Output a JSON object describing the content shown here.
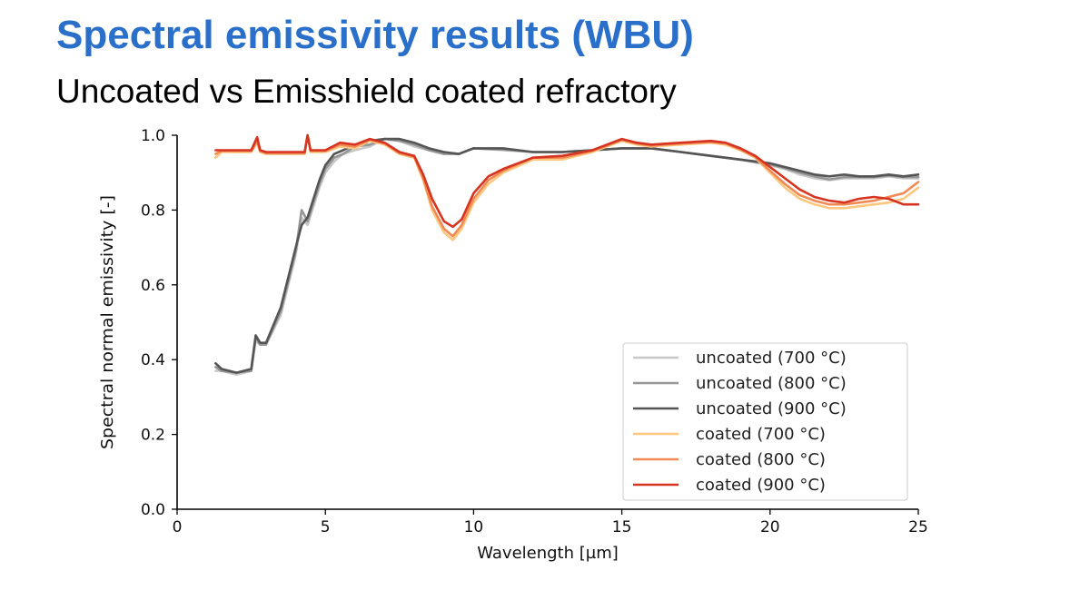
{
  "slide": {
    "title": "Spectral emissivity results (WBU)",
    "subtitle": "Uncoated vs Emisshield coated refractory"
  },
  "chart_data": {
    "type": "line",
    "xlabel": "Wavelength [µm]",
    "ylabel": "Spectral normal emissivity [-]",
    "xlim": [
      0,
      25
    ],
    "ylim": [
      0,
      1.0
    ],
    "xticks": [
      0,
      5,
      10,
      15,
      20,
      25
    ],
    "yticks": [
      0.0,
      0.2,
      0.4,
      0.6,
      0.8,
      1.0
    ],
    "xtick_labels": [
      "0",
      "5",
      "10",
      "15",
      "20",
      "25"
    ],
    "ytick_labels": [
      "0.0",
      "0.2",
      "0.4",
      "0.6",
      "0.8",
      "1.0"
    ],
    "grid": false,
    "legend_position": "lower-right",
    "series": [
      {
        "name": "uncoated (700 °C)",
        "color": "#c8c8c8",
        "x": [
          1.3,
          1.5,
          2.0,
          2.5,
          2.65,
          2.8,
          3.0,
          3.5,
          4.0,
          4.2,
          4.4,
          4.8,
          5.0,
          5.3,
          5.6,
          6.0,
          6.5,
          7.0,
          7.5,
          8.0,
          8.5,
          9.0,
          9.5,
          10.0,
          11.0,
          12.0,
          13.0,
          14.0,
          15.0,
          16.0,
          17.0,
          18.0,
          19.0,
          20.0,
          20.5,
          21.0,
          21.5,
          22.0,
          22.5,
          23.0,
          23.5,
          24.0,
          24.5,
          25.0
        ],
        "y": [
          0.37,
          0.37,
          0.36,
          0.37,
          0.45,
          0.44,
          0.44,
          0.52,
          0.68,
          0.78,
          0.76,
          0.86,
          0.9,
          0.93,
          0.95,
          0.96,
          0.97,
          0.99,
          0.985,
          0.97,
          0.96,
          0.95,
          0.95,
          0.965,
          0.96,
          0.955,
          0.955,
          0.96,
          0.965,
          0.965,
          0.955,
          0.945,
          0.935,
          0.92,
          0.91,
          0.895,
          0.885,
          0.88,
          0.885,
          0.885,
          0.885,
          0.89,
          0.885,
          0.885
        ]
      },
      {
        "name": "uncoated (800 °C)",
        "color": "#969696",
        "x": [
          1.3,
          1.5,
          2.0,
          2.5,
          2.65,
          2.8,
          3.0,
          3.5,
          4.0,
          4.2,
          4.4,
          4.8,
          5.0,
          5.3,
          5.6,
          6.0,
          6.5,
          7.0,
          7.5,
          8.0,
          8.5,
          9.0,
          9.5,
          10.0,
          11.0,
          12.0,
          13.0,
          14.0,
          15.0,
          16.0,
          17.0,
          18.0,
          19.0,
          20.0,
          20.5,
          21.0,
          21.5,
          22.0,
          22.5,
          23.0,
          23.5,
          24.0,
          24.5,
          25.0
        ],
        "y": [
          0.38,
          0.37,
          0.365,
          0.37,
          0.46,
          0.44,
          0.44,
          0.53,
          0.69,
          0.8,
          0.77,
          0.87,
          0.91,
          0.94,
          0.95,
          0.97,
          0.975,
          0.99,
          0.985,
          0.975,
          0.96,
          0.95,
          0.95,
          0.965,
          0.962,
          0.955,
          0.955,
          0.96,
          0.965,
          0.965,
          0.955,
          0.945,
          0.935,
          0.922,
          0.912,
          0.9,
          0.89,
          0.882,
          0.888,
          0.888,
          0.888,
          0.892,
          0.888,
          0.888
        ]
      },
      {
        "name": "uncoated (900 °C)",
        "color": "#555555",
        "x": [
          1.3,
          1.5,
          2.0,
          2.5,
          2.65,
          2.8,
          3.0,
          3.5,
          4.0,
          4.2,
          4.4,
          4.8,
          5.0,
          5.3,
          5.6,
          6.0,
          6.5,
          7.0,
          7.5,
          8.0,
          8.5,
          9.0,
          9.5,
          10.0,
          11.0,
          12.0,
          13.0,
          14.0,
          15.0,
          16.0,
          17.0,
          18.0,
          19.0,
          20.0,
          20.5,
          21.0,
          21.5,
          22.0,
          22.5,
          23.0,
          23.5,
          24.0,
          24.5,
          25.0
        ],
        "y": [
          0.39,
          0.375,
          0.365,
          0.375,
          0.465,
          0.445,
          0.445,
          0.54,
          0.7,
          0.76,
          0.78,
          0.88,
          0.92,
          0.95,
          0.96,
          0.975,
          0.985,
          0.99,
          0.99,
          0.98,
          0.965,
          0.955,
          0.95,
          0.965,
          0.965,
          0.955,
          0.955,
          0.96,
          0.965,
          0.965,
          0.955,
          0.945,
          0.935,
          0.925,
          0.915,
          0.905,
          0.895,
          0.89,
          0.895,
          0.89,
          0.89,
          0.895,
          0.89,
          0.895
        ]
      },
      {
        "name": "coated (700 °C)",
        "color": "#fdc77f",
        "x": [
          1.3,
          1.5,
          2.0,
          2.5,
          2.7,
          2.8,
          3.0,
          3.5,
          4.0,
          4.3,
          4.4,
          4.5,
          5.0,
          5.5,
          6.0,
          6.5,
          7.0,
          7.5,
          8.0,
          8.3,
          8.6,
          9.0,
          9.3,
          9.6,
          10.0,
          10.5,
          11.0,
          12.0,
          13.0,
          14.0,
          14.5,
          15.0,
          15.5,
          16.0,
          17.0,
          18.0,
          18.5,
          19.0,
          19.5,
          20.0,
          20.5,
          21.0,
          21.5,
          22.0,
          22.5,
          23.0,
          23.5,
          24.0,
          24.5,
          25.0
        ],
        "y": [
          0.94,
          0.955,
          0.955,
          0.955,
          0.98,
          0.955,
          0.95,
          0.95,
          0.95,
          0.95,
          1.0,
          0.955,
          0.955,
          0.97,
          0.965,
          0.985,
          0.975,
          0.95,
          0.94,
          0.88,
          0.8,
          0.74,
          0.72,
          0.75,
          0.82,
          0.87,
          0.9,
          0.935,
          0.935,
          0.955,
          0.97,
          0.985,
          0.975,
          0.97,
          0.975,
          0.98,
          0.975,
          0.96,
          0.94,
          0.9,
          0.86,
          0.83,
          0.815,
          0.805,
          0.805,
          0.81,
          0.815,
          0.82,
          0.83,
          0.86
        ]
      },
      {
        "name": "coated (800 °C)",
        "color": "#f08a55",
        "x": [
          1.3,
          1.5,
          2.0,
          2.5,
          2.7,
          2.8,
          3.0,
          3.5,
          4.0,
          4.3,
          4.4,
          4.5,
          5.0,
          5.5,
          6.0,
          6.5,
          7.0,
          7.5,
          8.0,
          8.3,
          8.6,
          9.0,
          9.3,
          9.6,
          10.0,
          10.5,
          11.0,
          12.0,
          13.0,
          14.0,
          14.5,
          15.0,
          15.5,
          16.0,
          17.0,
          18.0,
          18.5,
          19.0,
          19.5,
          20.0,
          20.5,
          21.0,
          21.5,
          22.0,
          22.5,
          23.0,
          23.5,
          24.0,
          24.5,
          25.0
        ],
        "y": [
          0.95,
          0.958,
          0.958,
          0.958,
          0.985,
          0.958,
          0.952,
          0.952,
          0.952,
          0.952,
          1.0,
          0.958,
          0.958,
          0.975,
          0.97,
          0.988,
          0.978,
          0.952,
          0.942,
          0.885,
          0.81,
          0.75,
          0.73,
          0.76,
          0.83,
          0.88,
          0.905,
          0.94,
          0.94,
          0.958,
          0.972,
          0.988,
          0.978,
          0.972,
          0.978,
          0.982,
          0.978,
          0.962,
          0.942,
          0.905,
          0.87,
          0.84,
          0.825,
          0.815,
          0.815,
          0.82,
          0.825,
          0.835,
          0.845,
          0.875
        ]
      },
      {
        "name": "coated (900 °C)",
        "color": "#d63420",
        "x": [
          1.3,
          1.5,
          2.0,
          2.5,
          2.7,
          2.8,
          3.0,
          3.5,
          4.0,
          4.3,
          4.4,
          4.5,
          5.0,
          5.5,
          6.0,
          6.5,
          7.0,
          7.5,
          8.0,
          8.3,
          8.6,
          9.0,
          9.3,
          9.6,
          10.0,
          10.5,
          11.0,
          12.0,
          13.0,
          14.0,
          14.5,
          15.0,
          15.5,
          16.0,
          17.0,
          18.0,
          18.5,
          19.0,
          19.5,
          20.0,
          20.5,
          21.0,
          21.5,
          22.0,
          22.5,
          23.0,
          23.5,
          24.0,
          24.5,
          25.0
        ],
        "y": [
          0.96,
          0.96,
          0.96,
          0.96,
          0.995,
          0.96,
          0.955,
          0.955,
          0.955,
          0.955,
          1.0,
          0.96,
          0.96,
          0.98,
          0.975,
          0.99,
          0.98,
          0.955,
          0.945,
          0.895,
          0.83,
          0.77,
          0.755,
          0.775,
          0.845,
          0.89,
          0.91,
          0.94,
          0.945,
          0.96,
          0.975,
          0.99,
          0.98,
          0.975,
          0.98,
          0.985,
          0.98,
          0.965,
          0.945,
          0.915,
          0.885,
          0.855,
          0.835,
          0.825,
          0.82,
          0.83,
          0.835,
          0.83,
          0.815,
          0.815
        ]
      }
    ]
  }
}
